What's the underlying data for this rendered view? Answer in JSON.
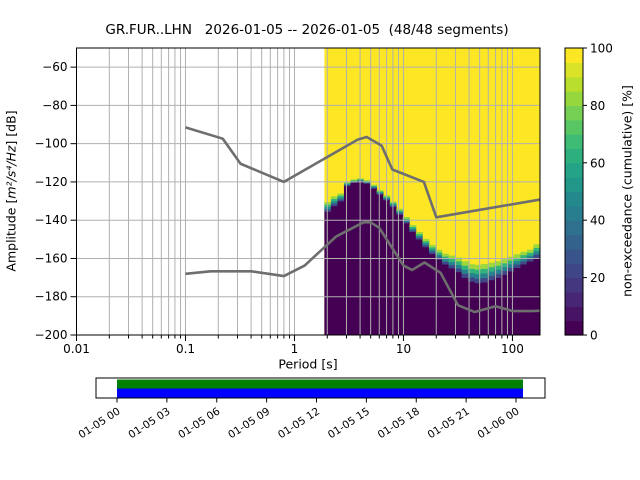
{
  "chart_data": {
    "type": "heatmap",
    "title": "GR.FUR..LHN   2026-01-05 -- 2026-01-05  (48/48 segments)",
    "xlabel": "Period [s]",
    "ylabel_prefix": "Amplitude [",
    "ylabel_math": "m²/s⁴/Hz",
    "ylabel_suffix": "] [dB]",
    "xscale": "log",
    "xlim": [
      0.01,
      179
    ],
    "ylim": [
      -200,
      -50
    ],
    "grid": true,
    "x_major_ticks": [
      0.01,
      0.1,
      1,
      10,
      100
    ],
    "x_tick_labels": [
      "0.01",
      "0.1",
      "1",
      "10",
      "100"
    ],
    "y_major_ticks": [
      -60,
      -80,
      -100,
      -120,
      -140,
      -160,
      -180,
      -200
    ],
    "y_tick_labels": [
      "−60",
      "−80",
      "−100",
      "−120",
      "−140",
      "−160",
      "−180",
      "−200"
    ],
    "colorbar": {
      "label": "non-exceedance (cumulative) [%]",
      "ticks": [
        0,
        20,
        40,
        60,
        80,
        100
      ],
      "tick_labels": [
        "0",
        "20",
        "40",
        "60",
        "80",
        "100"
      ],
      "levels": 20,
      "range": [
        0,
        100
      ]
    },
    "colors": {
      "background": "#ffffff",
      "grid": "#b0b0b0",
      "frame": "#000000",
      "noise_model_line": "#6e6e6e",
      "heat_low": "#440154",
      "heat_high": "#fde725",
      "viridis_stops": [
        "#440154",
        "#482878",
        "#3e4989",
        "#31688e",
        "#26828e",
        "#1f9e89",
        "#35b779",
        "#6ece58",
        "#b5de2b",
        "#fde725"
      ],
      "timeline_top": "#008000",
      "timeline_bottom": "#0000ff"
    },
    "histogram": {
      "description": "cumulative non-exceedance PSD distribution; top_db = level below which values are ~0%, spread_db = width of transition up to ~100%",
      "period_min_s": 1.88,
      "period_max_s": 179,
      "n_columns": 33,
      "period_centers_s": [
        2.02,
        2.31,
        2.66,
        3.05,
        3.5,
        4.02,
        4.61,
        5.29,
        6.08,
        6.97,
        8.0,
        9.19,
        10.5,
        12.1,
        13.9,
        16.0,
        18.3,
        21.0,
        24.1,
        27.7,
        31.8,
        36.5,
        41.9,
        48.1,
        55.2,
        63.4,
        72.7,
        83.5,
        95.8,
        110,
        126,
        145,
        166
      ],
      "top_db": [
        -135.5,
        -132.5,
        -130.0,
        -122.0,
        -120.3,
        -119.7,
        -120.8,
        -123.4,
        -126.5,
        -129.5,
        -133.0,
        -137.0,
        -141.5,
        -146.0,
        -150.0,
        -154.0,
        -157.5,
        -160.5,
        -163.0,
        -165.0,
        -167.0,
        -170.0,
        -172.0,
        -172.8,
        -172.4,
        -171.2,
        -170.0,
        -168.4,
        -166.6,
        -164.8,
        -163.0,
        -161.4,
        -159.6
      ],
      "spread_db": [
        5,
        5,
        4,
        2,
        1.6,
        1.6,
        1.8,
        2,
        2.2,
        2.5,
        2.8,
        3,
        3.2,
        3.5,
        3.8,
        4.2,
        4.6,
        5,
        5.5,
        6.5,
        7.5,
        8.5,
        9,
        9.5,
        9.5,
        9,
        8.5,
        8,
        7.5,
        7,
        6.5,
        6,
        7
      ]
    },
    "noise_models": {
      "high_noise_model": [
        [
          0.1,
          -91.5
        ],
        [
          0.22,
          -97.4
        ],
        [
          0.32,
          -110.5
        ],
        [
          0.8,
          -120.0
        ],
        [
          3.8,
          -97.9
        ],
        [
          4.6,
          -96.5
        ],
        [
          6.3,
          -101.0
        ],
        [
          7.9,
          -113.5
        ],
        [
          15.4,
          -120.0
        ],
        [
          20.0,
          -138.5
        ],
        [
          179,
          -129.2
        ]
      ],
      "low_noise_model": [
        [
          0.1,
          -168.0
        ],
        [
          0.17,
          -166.7
        ],
        [
          0.4,
          -166.7
        ],
        [
          0.8,
          -169.2
        ],
        [
          1.24,
          -163.7
        ],
        [
          2.4,
          -148.6
        ],
        [
          4.3,
          -141.1
        ],
        [
          5.0,
          -141.1
        ],
        [
          6.0,
          -144.0
        ],
        [
          10.0,
          -163.7
        ],
        [
          12.0,
          -166.0
        ],
        [
          15.6,
          -162.1
        ],
        [
          21.9,
          -167.5
        ],
        [
          31.6,
          -184.4
        ],
        [
          45.0,
          -188.0
        ],
        [
          70.0,
          -185.0
        ],
        [
          101.0,
          -187.5
        ],
        [
          154.0,
          -187.5
        ],
        [
          179.0,
          -187.3
        ]
      ]
    },
    "timeline": {
      "tick_labels": [
        "01-05 00",
        "01-05 03",
        "01-05 06",
        "01-05 09",
        "01-05 12",
        "01-05 15",
        "01-05 18",
        "01-05 21",
        "01-06 00"
      ],
      "coverage_fraction": 1.0
    }
  }
}
